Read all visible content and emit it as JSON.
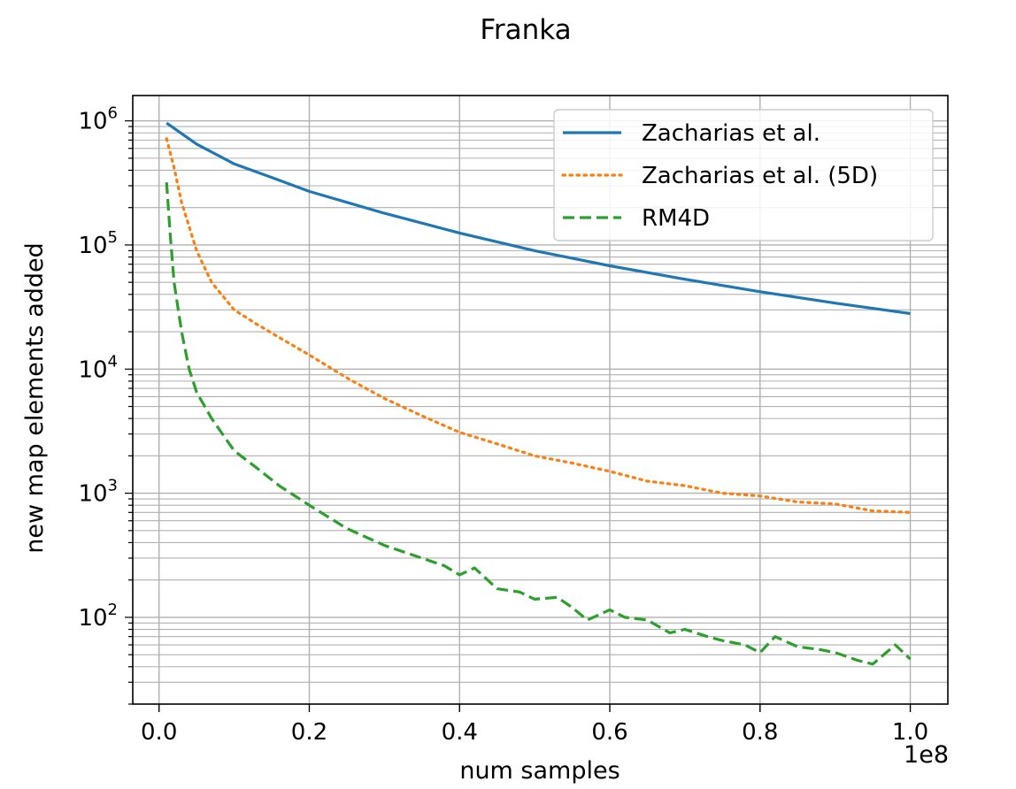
{
  "chart_data": {
    "type": "line",
    "title": "Franka",
    "xlabel": "num samples",
    "ylabel": "new map elements added",
    "x_offset_label": "1e8",
    "xlim": [
      -0.035,
      1.05
    ],
    "ylim": [
      20,
      1600000
    ],
    "yscale": "log",
    "grid": true,
    "legend_position": "top-right",
    "x_ticks": [
      "0.0",
      "0.2",
      "0.4",
      "0.6",
      "0.8",
      "1.0"
    ],
    "y_ticks": [
      {
        "base": "10",
        "exp": "2",
        "value": 100
      },
      {
        "base": "10",
        "exp": "3",
        "value": 1000
      },
      {
        "base": "10",
        "exp": "4",
        "value": 10000
      },
      {
        "base": "10",
        "exp": "5",
        "value": 100000
      },
      {
        "base": "10",
        "exp": "6",
        "value": 1000000
      }
    ],
    "series": [
      {
        "name": "Zacharias et al.",
        "color": "#1f77b4",
        "style": "solid",
        "x": [
          0.01,
          0.05,
          0.1,
          0.15,
          0.2,
          0.3,
          0.4,
          0.5,
          0.6,
          0.7,
          0.8,
          0.9,
          1.0
        ],
        "y": [
          960000,
          650000,
          450000,
          350000,
          270000,
          180000,
          125000,
          90000,
          68000,
          53000,
          42000,
          34000,
          28000
        ]
      },
      {
        "name": "Zacharias et al. (5D)",
        "color": "#ff7f0e",
        "style": "dotted",
        "x": [
          0.01,
          0.02,
          0.03,
          0.05,
          0.07,
          0.1,
          0.13,
          0.16,
          0.2,
          0.25,
          0.3,
          0.35,
          0.4,
          0.45,
          0.5,
          0.55,
          0.6,
          0.65,
          0.7,
          0.75,
          0.8,
          0.85,
          0.9,
          0.95,
          1.0
        ],
        "y": [
          720000,
          420000,
          220000,
          90000,
          50000,
          30000,
          23000,
          18000,
          13000,
          8500,
          5800,
          4200,
          3100,
          2500,
          2000,
          1750,
          1500,
          1250,
          1150,
          1000,
          950,
          850,
          820,
          720,
          700
        ]
      },
      {
        "name": "RM4D",
        "color": "#2ca02c",
        "style": "dashed",
        "x": [
          0.01,
          0.015,
          0.02,
          0.03,
          0.04,
          0.05,
          0.07,
          0.1,
          0.13,
          0.16,
          0.2,
          0.25,
          0.3,
          0.35,
          0.38,
          0.4,
          0.42,
          0.45,
          0.48,
          0.5,
          0.53,
          0.55,
          0.57,
          0.6,
          0.62,
          0.65,
          0.68,
          0.7,
          0.73,
          0.75,
          0.78,
          0.8,
          0.82,
          0.85,
          0.88,
          0.9,
          0.93,
          0.95,
          0.98,
          1.0
        ],
        "y": [
          320000,
          120000,
          50000,
          20000,
          10000,
          6500,
          4000,
          2200,
          1600,
          1150,
          800,
          520,
          380,
          300,
          260,
          220,
          250,
          170,
          160,
          140,
          145,
          120,
          95,
          115,
          100,
          95,
          75,
          80,
          70,
          65,
          60,
          52,
          70,
          58,
          55,
          52,
          45,
          42,
          60,
          46
        ]
      }
    ]
  }
}
